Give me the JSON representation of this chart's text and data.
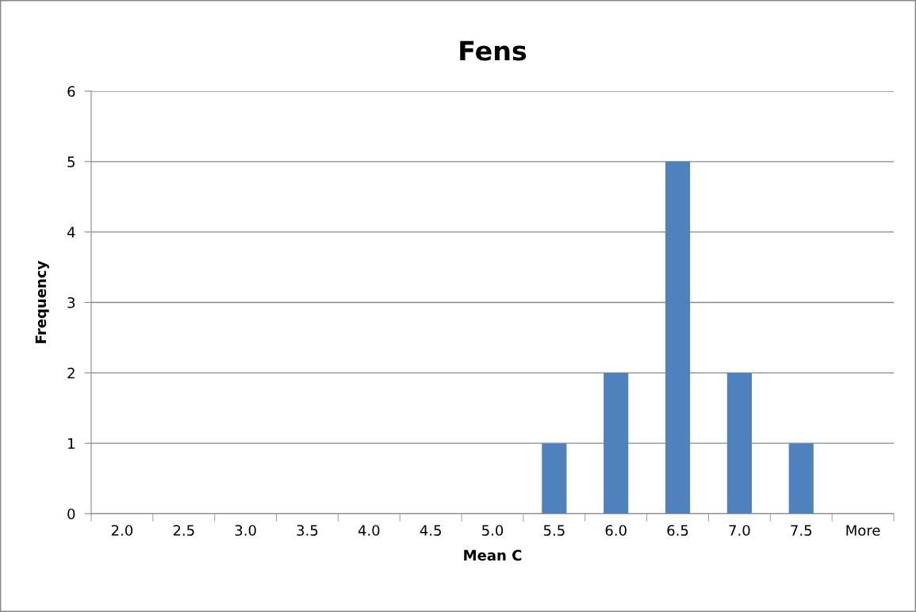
{
  "chart_data": {
    "type": "bar",
    "title": "Fens",
    "xlabel": "Mean C",
    "ylabel": "Frequency",
    "categories": [
      "2.0",
      "2.5",
      "3.0",
      "3.5",
      "4.0",
      "4.5",
      "5.0",
      "5.5",
      "6.0",
      "6.5",
      "7.0",
      "7.5",
      "More"
    ],
    "values": [
      0,
      0,
      0,
      0,
      0,
      0,
      0,
      1,
      2,
      5,
      2,
      1,
      0
    ],
    "color": "#4f81bd",
    "ylim": [
      0,
      6
    ],
    "yticks": [
      0,
      1,
      2,
      3,
      4,
      5,
      6
    ],
    "grid": "y",
    "legend": false
  }
}
